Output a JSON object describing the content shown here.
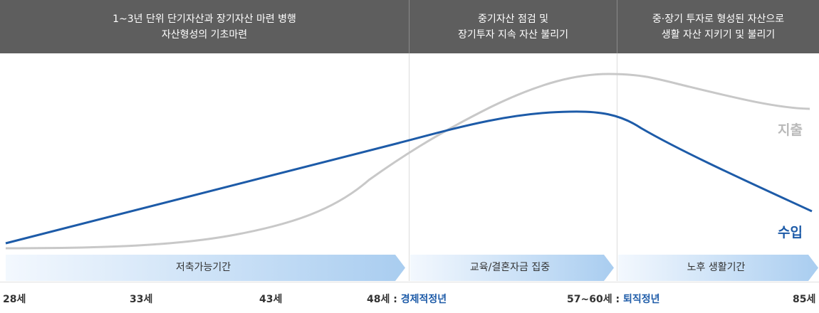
{
  "header": {
    "phases": [
      {
        "line1": "1~3년 단위 단기자산과 장기자산 마련 병행",
        "line2": "자산형성의 기초마련"
      },
      {
        "line1": "중기자산 점검 및",
        "line2": "장기투자 지속 자산 불리기"
      },
      {
        "line1": "중·장기 투자로 형성된 자산으로",
        "line2": "생활 자산 지키기 및 불리기"
      }
    ]
  },
  "periods": [
    {
      "label": "저축가능기간"
    },
    {
      "label": "교육/결혼자금 집중"
    },
    {
      "label": "노후 생활기간"
    }
  ],
  "timeline": [
    {
      "age": "28세",
      "sep": "",
      "event": ""
    },
    {
      "age": "33세",
      "sep": "",
      "event": ""
    },
    {
      "age": "43세",
      "sep": "",
      "event": ""
    },
    {
      "age": "48세",
      "sep": " : ",
      "event": "경제적정년"
    },
    {
      "age": "57~60세",
      "sep": " : ",
      "event": "퇴직정년"
    },
    {
      "age": "85세",
      "sep": "",
      "event": ""
    }
  ],
  "legend": {
    "expense": "지출",
    "income": "수입"
  },
  "colors": {
    "header_bg": "#5e5e5e",
    "income": "#1d5ba8",
    "expense": "#c8c8c8",
    "arrow_light": "#eef5fd",
    "arrow_dark": "#a9cdf0"
  }
}
